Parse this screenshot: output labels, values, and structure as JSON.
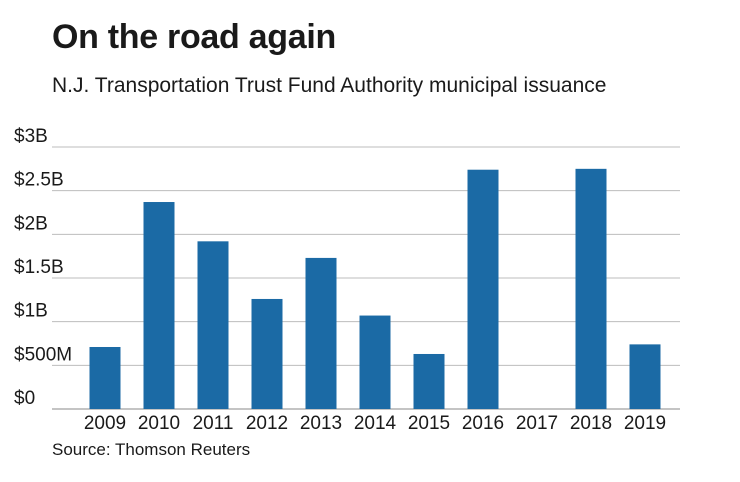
{
  "chart_data": {
    "type": "bar",
    "title": "On the road again",
    "subtitle": "N.J. Transportation Trust Fund Authority municipal issuance",
    "source": "Source: Thomson Reuters",
    "xlabel": "",
    "ylabel": "",
    "categories": [
      "2009",
      "2010",
      "2011",
      "2012",
      "2013",
      "2014",
      "2015",
      "2016",
      "2017",
      "2018",
      "2019"
    ],
    "values": [
      0.71,
      2.37,
      1.92,
      1.26,
      1.73,
      1.07,
      0.63,
      2.74,
      0,
      2.75,
      0.74
    ],
    "unit": "billions of dollars",
    "ylim": [
      0,
      3
    ],
    "yticks": [
      0,
      0.5,
      1,
      1.5,
      2,
      2.5,
      3
    ],
    "ytick_labels": [
      "$0",
      "$500M",
      "$1B",
      "$1.5B",
      "$2B",
      "$2.5B",
      "$3B"
    ],
    "grid": true,
    "legend": "none",
    "bar_color": "#1b6aa5",
    "grid_color": "#bdbdbd"
  }
}
